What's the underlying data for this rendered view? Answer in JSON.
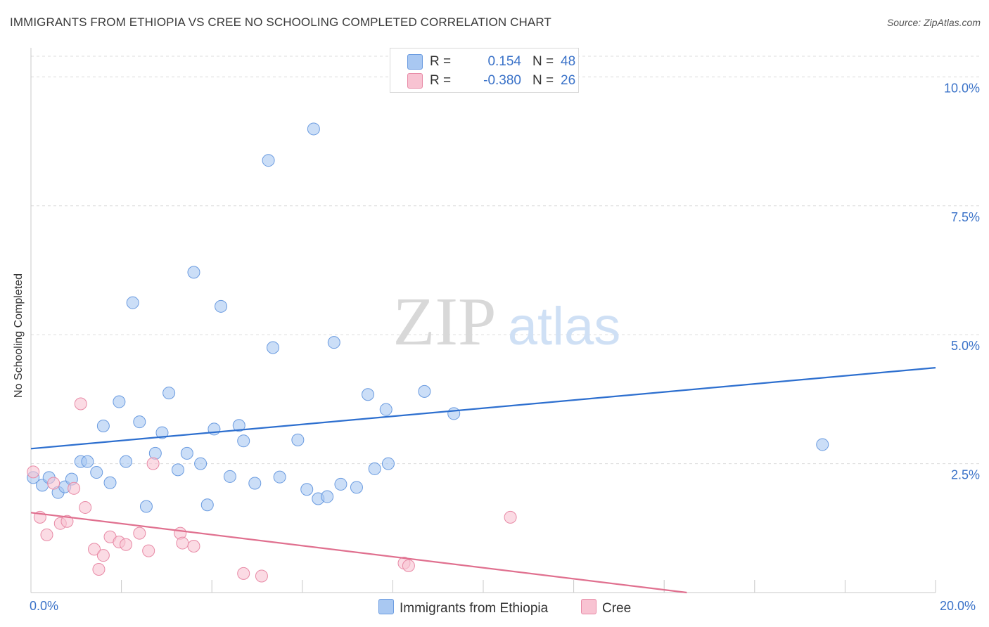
{
  "title": "IMMIGRANTS FROM ETHIOPIA VS CREE NO SCHOOLING COMPLETED CORRELATION CHART",
  "source": "Source: ZipAtlas.com",
  "watermark": {
    "zip": "ZIP",
    "atlas": "atlas"
  },
  "legend": {
    "rows": [
      {
        "r_label": "R =",
        "r_value": "0.154",
        "n_label": "N =",
        "n_value": "48",
        "color": "#a9c8f2",
        "border": "#6a9be0"
      },
      {
        "r_label": "R =",
        "r_value": "-0.380",
        "n_label": "N =",
        "n_value": "26",
        "color": "#f8c3d2",
        "border": "#e88aa6"
      }
    ]
  },
  "bottom_legend": [
    {
      "label": "Immigrants from Ethiopia",
      "color": "#a9c8f2",
      "border": "#6a9be0"
    },
    {
      "label": "Cree",
      "color": "#f8c3d2",
      "border": "#e88aa6"
    }
  ],
  "x_tick_labels": {
    "left": "0.0%",
    "right": "20.0%"
  },
  "chart_data": {
    "type": "scatter",
    "title": "IMMIGRANTS FROM ETHIOPIA VS CREE NO SCHOOLING COMPLETED CORRELATION CHART",
    "xlabel": "",
    "ylabel": "No Schooling Completed",
    "xlim": [
      0,
      20
    ],
    "ylim": [
      0,
      10.4
    ],
    "y_ticks": [
      {
        "value": 2.5,
        "label": "2.5%"
      },
      {
        "value": 5.0,
        "label": "5.0%"
      },
      {
        "value": 7.5,
        "label": "7.5%"
      },
      {
        "value": 10.0,
        "label": "10.0%"
      }
    ],
    "x_ticks": [
      0,
      2,
      4,
      6,
      8,
      10,
      12,
      14,
      16,
      18,
      20
    ],
    "grid": true,
    "series": [
      {
        "name": "Immigrants from Ethiopia",
        "color": "#a9c8f2",
        "stroke": "#6a9be0",
        "trend": {
          "x": [
            0,
            20
          ],
          "y": [
            2.79,
            4.36
          ],
          "color": "#2d6fcf"
        },
        "points": [
          [
            0.05,
            2.23
          ],
          [
            0.25,
            2.08
          ],
          [
            0.4,
            2.23
          ],
          [
            0.6,
            1.94
          ],
          [
            0.75,
            2.05
          ],
          [
            0.9,
            2.2
          ],
          [
            1.1,
            2.54
          ],
          [
            1.25,
            2.54
          ],
          [
            1.45,
            2.33
          ],
          [
            1.6,
            3.23
          ],
          [
            1.75,
            2.13
          ],
          [
            1.95,
            3.7
          ],
          [
            2.1,
            2.54
          ],
          [
            2.25,
            5.62
          ],
          [
            2.4,
            3.31
          ],
          [
            2.55,
            1.67
          ],
          [
            2.75,
            2.7
          ],
          [
            2.9,
            3.1
          ],
          [
            3.05,
            3.87
          ],
          [
            3.25,
            2.38
          ],
          [
            3.45,
            2.7
          ],
          [
            3.6,
            6.21
          ],
          [
            3.75,
            2.5
          ],
          [
            3.9,
            1.7
          ],
          [
            4.05,
            3.17
          ],
          [
            4.2,
            5.55
          ],
          [
            4.4,
            2.25
          ],
          [
            4.6,
            3.24
          ],
          [
            4.7,
            2.94
          ],
          [
            4.95,
            2.12
          ],
          [
            5.25,
            8.38
          ],
          [
            5.35,
            4.75
          ],
          [
            5.5,
            2.24
          ],
          [
            5.9,
            2.96
          ],
          [
            6.1,
            2.0
          ],
          [
            6.25,
            8.99
          ],
          [
            6.35,
            1.82
          ],
          [
            6.55,
            1.86
          ],
          [
            6.7,
            4.85
          ],
          [
            6.85,
            2.1
          ],
          [
            7.2,
            2.04
          ],
          [
            7.45,
            3.84
          ],
          [
            7.6,
            2.4
          ],
          [
            7.85,
            3.55
          ],
          [
            7.9,
            2.5
          ],
          [
            8.7,
            3.9
          ],
          [
            9.35,
            3.47
          ],
          [
            17.5,
            2.87
          ]
        ]
      },
      {
        "name": "Cree",
        "color": "#f8c3d2",
        "stroke": "#e88aa6",
        "trend": {
          "x": [
            0,
            14.5
          ],
          "y": [
            1.55,
            0.0
          ],
          "color": "#e0708f"
        },
        "points": [
          [
            0.05,
            2.34
          ],
          [
            0.2,
            1.46
          ],
          [
            0.35,
            1.12
          ],
          [
            0.5,
            2.12
          ],
          [
            0.65,
            1.34
          ],
          [
            0.8,
            1.38
          ],
          [
            0.95,
            2.02
          ],
          [
            1.1,
            3.66
          ],
          [
            1.2,
            1.65
          ],
          [
            1.4,
            0.84
          ],
          [
            1.5,
            0.45
          ],
          [
            1.6,
            0.72
          ],
          [
            1.75,
            1.08
          ],
          [
            1.95,
            0.98
          ],
          [
            2.1,
            0.93
          ],
          [
            2.4,
            1.15
          ],
          [
            2.6,
            0.81
          ],
          [
            2.7,
            2.5
          ],
          [
            3.3,
            1.15
          ],
          [
            3.35,
            0.96
          ],
          [
            3.6,
            0.9
          ],
          [
            4.7,
            0.37
          ],
          [
            5.1,
            0.32
          ],
          [
            8.25,
            0.57
          ],
          [
            8.35,
            0.52
          ],
          [
            10.6,
            1.46
          ]
        ]
      }
    ]
  }
}
